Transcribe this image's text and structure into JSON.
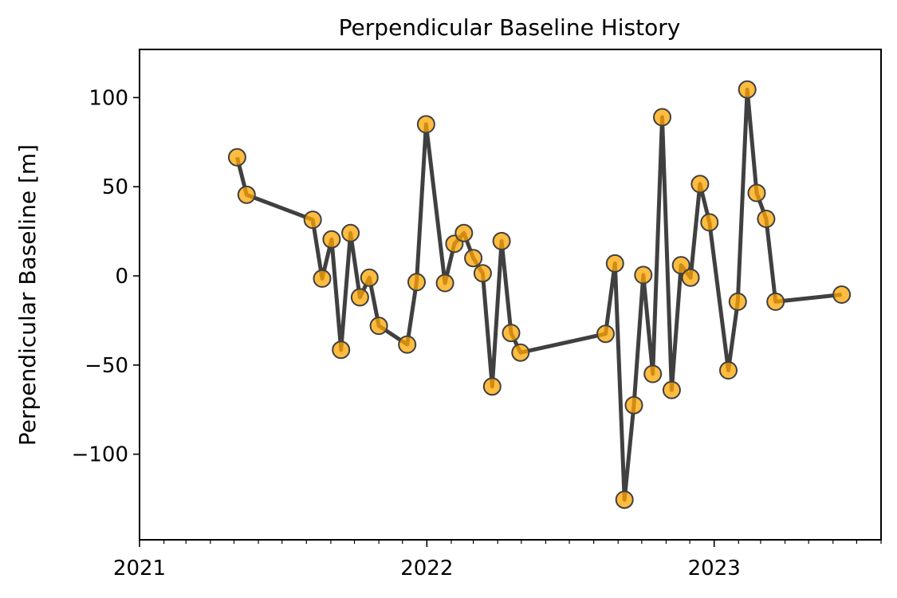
{
  "chart_data": {
    "type": "line",
    "title": "Perpendicular Baseline History",
    "xlabel": "",
    "ylabel": "Perpendicular Baseline [m]",
    "xlim": [
      "2021-01-01",
      "2023-08-01"
    ],
    "ylim": [
      -148,
      127
    ],
    "x_major_ticks": [
      "2021-01-01",
      "2022-01-01",
      "2023-01-01"
    ],
    "x_major_tick_labels": [
      "2021",
      "2022",
      "2023"
    ],
    "x_minor_ticks_monthly": true,
    "y_ticks": [
      -100,
      -50,
      0,
      50,
      100
    ],
    "y_tick_labels": [
      "−100",
      "−50",
      "0",
      "50",
      "100"
    ],
    "grid": false,
    "line_color": "#404040",
    "marker_color": "#FFA500",
    "marker_edge_color": "#404040",
    "series": [
      {
        "x": [
          "2021-05-05",
          "2021-05-17",
          "2021-08-09",
          "2021-08-21",
          "2021-09-02",
          "2021-09-14",
          "2021-09-26",
          "2021-10-08",
          "2021-10-20",
          "2021-11-01",
          "2021-12-07",
          "2021-12-19",
          "2021-12-31",
          "2022-01-24",
          "2022-02-05",
          "2022-02-17",
          "2022-03-01",
          "2022-03-13",
          "2022-03-25",
          "2022-04-06",
          "2022-04-18",
          "2022-04-30",
          "2022-08-16",
          "2022-08-28",
          "2022-09-09",
          "2022-09-21",
          "2022-10-03",
          "2022-10-15",
          "2022-10-27",
          "2022-11-08",
          "2022-11-20",
          "2022-12-02",
          "2022-12-14",
          "2022-12-26",
          "2023-01-19",
          "2023-01-31",
          "2023-02-12",
          "2023-02-24",
          "2023-03-08",
          "2023-03-20",
          "2023-06-12"
        ],
        "y": [
          66.5,
          45.5,
          31.5,
          -1.5,
          20.5,
          -41.5,
          24.0,
          -12.0,
          -1.0,
          -28.0,
          -38.5,
          -3.5,
          85.0,
          -4.0,
          18.0,
          24.0,
          10.0,
          1.5,
          -62.0,
          19.5,
          -32.0,
          -43.0,
          -32.5,
          7.0,
          -125.5,
          -72.5,
          0.5,
          -55.0,
          89.0,
          -64.0,
          6.0,
          -1.0,
          51.5,
          30.0,
          -53.0,
          -14.5,
          104.5,
          46.5,
          32.0,
          -14.5,
          -10.5
        ]
      }
    ]
  }
}
